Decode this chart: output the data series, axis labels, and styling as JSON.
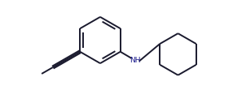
{
  "bg_color": "#ffffff",
  "line_color": "#1a1a2e",
  "nh_color": "#1a1a8c",
  "line_width": 1.4,
  "fig_width": 2.86,
  "fig_height": 1.11,
  "dpi": 100,
  "xlim": [
    0,
    10
  ],
  "ylim": [
    0,
    3.88
  ]
}
